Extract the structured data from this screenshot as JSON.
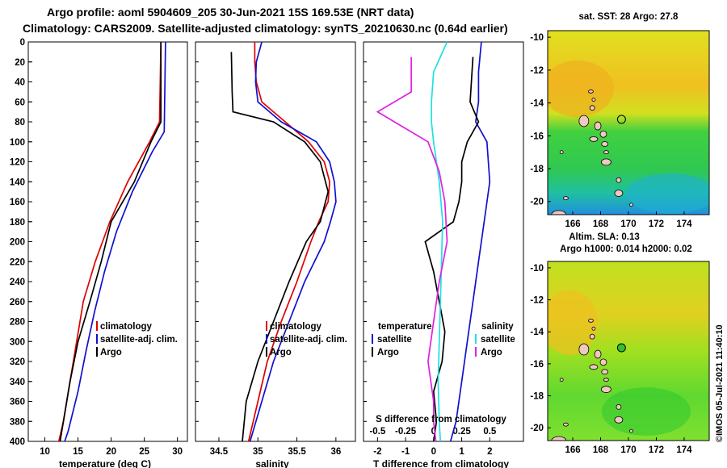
{
  "header": {
    "line1": "Argo profile: aoml 5904609_205 30-Jun-2021 15S 169.53E (NRT data)",
    "line2": "Climatology: CARS2009. Satellite-adjusted climatology: synTS_20210630.nc (0.64d earlier)"
  },
  "watermark": "©IMOS 05-Jul-2021 11:40:10",
  "colors": {
    "black": "#000000",
    "red": "#e00000",
    "blue": "#1010d0",
    "magenta": "#e020e0",
    "cyan": "#20e0e0"
  },
  "chart_data": [
    {
      "type": "line",
      "name": "temperature-profile",
      "xlabel": "temperature (deg C)",
      "xlim": [
        7.5,
        31.5
      ],
      "xticks": [
        10,
        15,
        20,
        25,
        30
      ],
      "ylim": [
        400,
        0
      ],
      "yticks": [
        0,
        20,
        40,
        60,
        80,
        100,
        120,
        140,
        160,
        180,
        200,
        220,
        240,
        260,
        280,
        300,
        320,
        340,
        360,
        380,
        400
      ],
      "series": [
        {
          "name": "climatology",
          "color": "#e00000",
          "depth": [
            0,
            80,
            100,
            140,
            180,
            220,
            260,
            300,
            340,
            380,
            400
          ],
          "values": [
            27.5,
            27.3,
            25.8,
            22.5,
            19.8,
            17.6,
            15.8,
            14.8,
            13.8,
            12.8,
            12.1
          ]
        },
        {
          "name": "satellite-adj. clim.",
          "color": "#1010d0",
          "depth": [
            0,
            90,
            110,
            150,
            190,
            230,
            270,
            310,
            350,
            390,
            400
          ],
          "values": [
            28.2,
            28.0,
            26.2,
            23.2,
            20.8,
            19.0,
            17.5,
            16.2,
            15.0,
            13.5,
            13.0
          ]
        },
        {
          "name": "Argo",
          "color": "#000000",
          "depth": [
            0,
            80,
            100,
            140,
            180,
            220,
            260,
            300,
            340,
            380,
            400
          ],
          "values": [
            27.5,
            27.5,
            26.0,
            23.5,
            20.0,
            18.5,
            16.8,
            15.0,
            13.8,
            12.8,
            12.3
          ]
        }
      ],
      "legend": [
        "climatology",
        "satellite-adj. clim.",
        "Argo"
      ]
    },
    {
      "type": "line",
      "name": "salinity-profile",
      "xlabel": "salinity",
      "xlim": [
        34.2,
        36.25
      ],
      "xticks": [
        34.5,
        35,
        35.5,
        36
      ],
      "xtick_labels": [
        "34.5",
        "35",
        "35.5",
        "36"
      ],
      "ylim": [
        400,
        0
      ],
      "series": [
        {
          "name": "climatology",
          "color": "#e00000",
          "depth": [
            0,
            20,
            40,
            60,
            80,
            100,
            120,
            140,
            160,
            180,
            200,
            240,
            280,
            320,
            360,
            400
          ],
          "values": [
            34.96,
            34.96,
            34.98,
            35.05,
            35.35,
            35.65,
            35.85,
            35.92,
            35.9,
            35.78,
            35.68,
            35.5,
            35.3,
            35.12,
            35.0,
            34.88
          ]
        },
        {
          "name": "satellite-adj. clim.",
          "color": "#1010d0",
          "depth": [
            0,
            20,
            40,
            60,
            80,
            100,
            120,
            140,
            160,
            180,
            200,
            240,
            280,
            320,
            360,
            400
          ],
          "values": [
            35.05,
            34.98,
            34.97,
            35.0,
            35.3,
            35.75,
            35.92,
            35.98,
            36.0,
            35.93,
            35.85,
            35.6,
            35.4,
            35.2,
            35.05,
            34.9
          ]
        },
        {
          "name": "Argo",
          "color": "#000000",
          "depth": [
            10,
            50,
            70,
            80,
            100,
            120,
            150,
            180,
            200,
            240,
            280,
            320,
            360,
            400
          ],
          "values": [
            34.66,
            34.67,
            34.68,
            35.2,
            35.6,
            35.8,
            35.9,
            35.8,
            35.62,
            35.4,
            35.2,
            35.0,
            34.85,
            34.8
          ]
        }
      ],
      "legend": [
        "climatology",
        "satellite-adj. clim.",
        "Argo"
      ]
    },
    {
      "type": "line",
      "name": "difference-profile",
      "xlabel": "T difference from climatology",
      "top_xlabel": "S difference from climatology",
      "xlim": [
        -2.5,
        3.2
      ],
      "xticks": [
        -2,
        -1,
        0,
        1,
        2
      ],
      "xtick_labels": [
        "-2",
        "-1",
        "0",
        "1",
        "2"
      ],
      "sxticks": [
        -0.5,
        -0.25,
        0,
        0.25,
        0.5
      ],
      "sxtick_labels": [
        "-0.5",
        "-0.25",
        "0",
        "0.25",
        "0.5"
      ],
      "ylim": [
        400,
        0
      ],
      "legend_titles": [
        "temperature",
        "salinity"
      ],
      "series": [
        {
          "name": "T satellite",
          "color": "#1010d0",
          "depth": [
            0,
            30,
            60,
            80,
            100,
            140,
            180,
            220,
            260,
            300,
            340,
            380,
            400
          ],
          "values": [
            1.7,
            1.6,
            1.6,
            1.5,
            1.9,
            2.0,
            1.8,
            1.6,
            1.4,
            1.2,
            1.0,
            0.8,
            0.6
          ]
        },
        {
          "name": "T Argo",
          "color": "#000000",
          "depth": [
            15,
            60,
            80,
            100,
            120,
            140,
            160,
            180,
            200,
            230,
            260,
            290,
            320,
            350,
            380,
            400
          ],
          "values": [
            1.4,
            1.3,
            1.6,
            1.2,
            1.0,
            1.0,
            0.9,
            0.7,
            -0.3,
            0.0,
            0.2,
            0.4,
            0.3,
            0.0,
            0.1,
            0.0
          ]
        },
        {
          "name": "S satellite",
          "color": "#20e0e0",
          "depth": [
            0,
            30,
            60,
            80,
            100,
            140,
            180,
            220,
            260,
            300,
            340,
            380,
            400
          ],
          "values": [
            0.12,
            0.0,
            -0.02,
            -0.02,
            0.0,
            0.05,
            0.08,
            0.07,
            0.06,
            0.05,
            0.04,
            0.05,
            0.06
          ]
        },
        {
          "name": "S Argo",
          "color": "#e020e0",
          "depth": [
            15,
            50,
            70,
            80,
            100,
            130,
            160,
            200,
            240,
            280,
            320,
            360,
            380,
            400
          ],
          "values": [
            -0.2,
            -0.2,
            -0.5,
            -0.35,
            -0.05,
            0.05,
            0.1,
            0.12,
            0.05,
            0.0,
            -0.05,
            0.0,
            0.0,
            0.02
          ]
        }
      ],
      "legend": [
        "satellite",
        "Argo",
        "satellite",
        "Argo"
      ]
    },
    {
      "type": "heatmap",
      "name": "sst-map",
      "title": "sat. SST: 28 Argo: 27.8",
      "xticks": [
        166,
        168,
        170,
        172,
        174
      ],
      "yticks": [
        -10,
        -12,
        -14,
        -16,
        -18,
        -20
      ],
      "xlim": [
        164.2,
        175.8
      ],
      "ylim": [
        -20.8,
        -9.6
      ],
      "argo_position": [
        169.5,
        -15.0
      ]
    },
    {
      "type": "heatmap",
      "name": "sla-map",
      "title": "Altim. SLA: 0.13",
      "subtitle": "Argo h1000: 0.014 h2000: 0.02",
      "xticks": [
        166,
        168,
        170,
        172,
        174
      ],
      "yticks": [
        -10,
        -12,
        -14,
        -16,
        -18,
        -20
      ],
      "xlim": [
        164.2,
        175.8
      ],
      "ylim": [
        -20.8,
        -9.6
      ],
      "argo_position": [
        169.5,
        -15.0
      ]
    }
  ]
}
